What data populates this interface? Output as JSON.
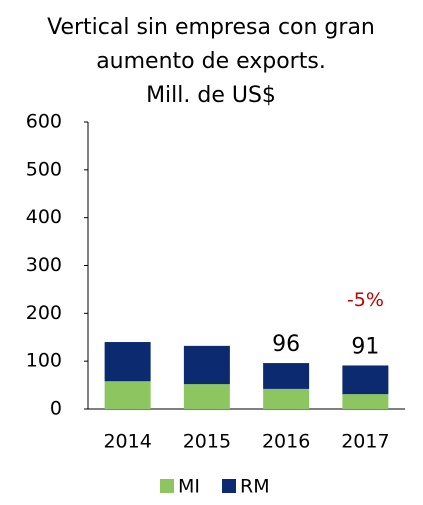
{
  "chart_data": {
    "type": "stacked_bar",
    "title": [
      "Vertical sin empresa con gran",
      "aumento de exports.",
      "Mill. de US$"
    ],
    "categories": [
      "2014",
      "2015",
      "2016",
      "2017"
    ],
    "series": [
      {
        "name": "MI",
        "color": "#8dc661",
        "values": [
          58,
          52,
          42,
          31
        ]
      },
      {
        "name": "RM",
        "color": "#0b2a6f",
        "values": [
          82,
          80,
          54,
          60
        ]
      }
    ],
    "data_labels": [
      null,
      null,
      "96",
      "91"
    ],
    "annotation": {
      "text": "-5%",
      "color": "#c00000",
      "category": 3
    },
    "ylim": [
      0,
      600
    ],
    "yticks": [
      0,
      100,
      200,
      300,
      400,
      500,
      600
    ],
    "grid": false
  }
}
